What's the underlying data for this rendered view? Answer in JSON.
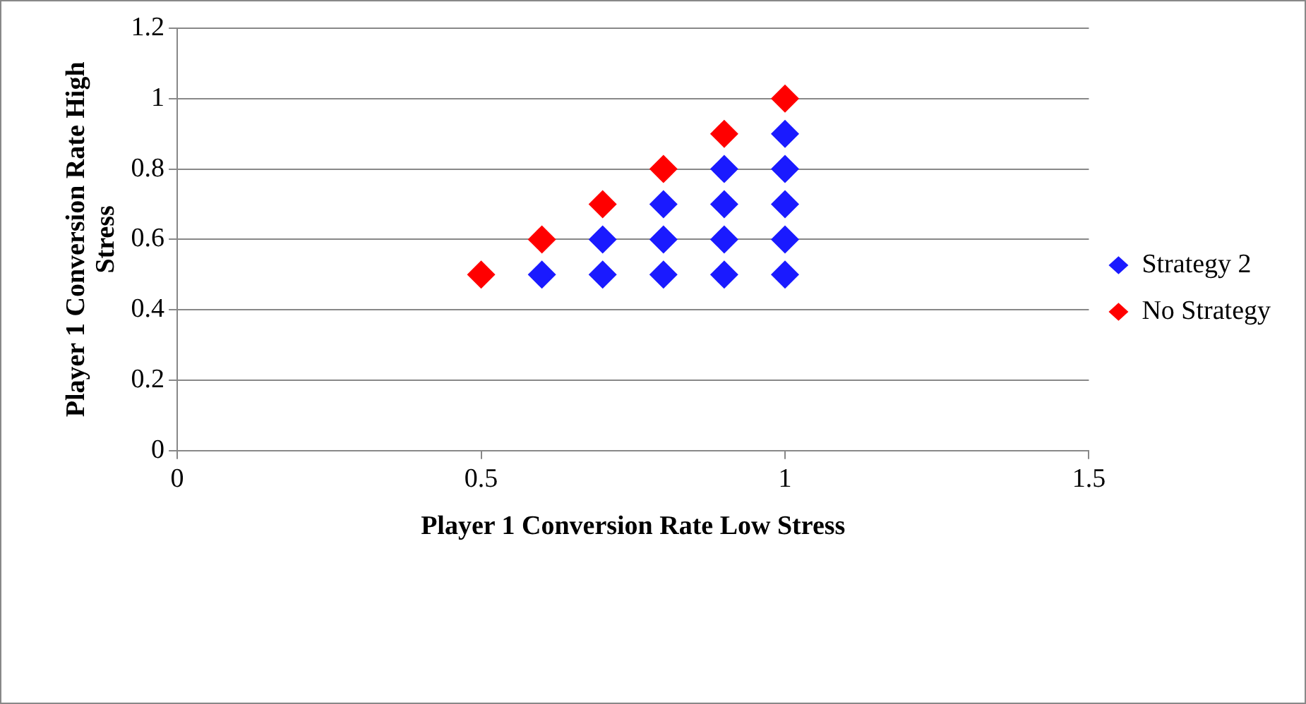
{
  "chart_data": {
    "type": "scatter",
    "xlabel": "Player 1 Conversion Rate Low Stress",
    "ylabel": "Player 1 Conversion Rate High Stress",
    "xlim": [
      0,
      1.5
    ],
    "xticks": [
      0,
      0.5,
      1,
      1.5
    ],
    "ylim": [
      0,
      1.2
    ],
    "yticks": [
      0,
      0.2,
      0.4,
      0.6,
      0.8,
      1,
      1.2
    ],
    "grid": "y",
    "legend": "right",
    "marker": "diamond",
    "series": [
      {
        "name": "Strategy 2",
        "color": "#1a1aff",
        "x": [
          0.6,
          0.7,
          0.7,
          0.8,
          0.8,
          0.8,
          0.9,
          0.9,
          0.9,
          0.9,
          1,
          1,
          1,
          1,
          1
        ],
        "values": [
          0.5,
          0.5,
          0.6,
          0.5,
          0.6,
          0.7,
          0.5,
          0.6,
          0.7,
          0.8,
          0.5,
          0.6,
          0.7,
          0.8,
          0.9
        ]
      },
      {
        "name": "No Strategy",
        "color": "#ff0000",
        "x": [
          0.5,
          0.6,
          0.7,
          0.8,
          0.9,
          1
        ],
        "values": [
          0.5,
          0.6,
          0.7,
          0.8,
          0.9,
          1
        ]
      }
    ]
  }
}
